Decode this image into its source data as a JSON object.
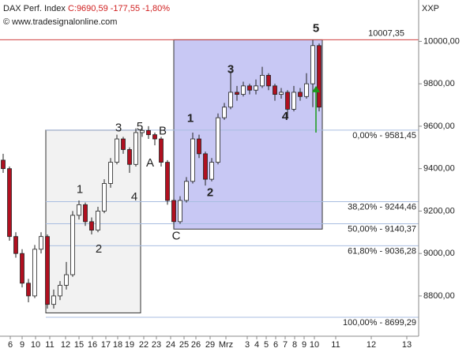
{
  "chart_data": {
    "type": "candlestick",
    "title": "DAX Perf. Index",
    "quote": "C:9690,59 -177,55 -1,80%",
    "subtitle": "© www.tradesignalonline.com",
    "axis_label": "XXP",
    "xlim": [
      0,
      530
    ],
    "ylim": [
      8610,
      10195
    ],
    "xticks": [
      {
        "value": 13,
        "label": "6"
      },
      {
        "value": 28,
        "label": "9"
      },
      {
        "value": 45,
        "label": "10"
      },
      {
        "value": 63,
        "label": "11"
      },
      {
        "value": 83,
        "label": "12"
      },
      {
        "value": 100,
        "label": "15"
      },
      {
        "value": 117,
        "label": "16"
      },
      {
        "value": 134,
        "label": "17"
      },
      {
        "value": 149,
        "label": "18"
      },
      {
        "value": 164,
        "label": "19"
      },
      {
        "value": 182,
        "label": "22"
      },
      {
        "value": 198,
        "label": "23"
      },
      {
        "value": 216,
        "label": "24"
      },
      {
        "value": 233,
        "label": "25"
      },
      {
        "value": 248,
        "label": "26"
      },
      {
        "value": 266,
        "label": "29"
      },
      {
        "value": 286,
        "label": "Mrz"
      },
      {
        "value": 313,
        "label": "3"
      },
      {
        "value": 325,
        "label": "4"
      },
      {
        "value": 337,
        "label": "5"
      },
      {
        "value": 349,
        "label": "6"
      },
      {
        "value": 361,
        "label": "7"
      },
      {
        "value": 373,
        "label": "8"
      },
      {
        "value": 385,
        "label": "9"
      },
      {
        "value": 398,
        "label": "10"
      },
      {
        "value": 425,
        "label": "11"
      },
      {
        "value": 470,
        "label": "12"
      },
      {
        "value": 515,
        "label": "13"
      }
    ],
    "yticks": [
      {
        "value": 8800,
        "label": "8800,00"
      },
      {
        "value": 9000,
        "label": "9000,00"
      },
      {
        "value": 9200,
        "label": "9200,00"
      },
      {
        "value": 9400,
        "label": "9400,00"
      },
      {
        "value": 9600,
        "label": "9600,00"
      },
      {
        "value": 9800,
        "label": "9800,00"
      },
      {
        "value": 10000,
        "label": "10000,00"
      }
    ],
    "up_color": "#ffffff",
    "down_color": "#b01020",
    "x": [
      4,
      12,
      20,
      28,
      36,
      44,
      52,
      60,
      68,
      76,
      84,
      92,
      100,
      108,
      116,
      124,
      132,
      140,
      148,
      156,
      164,
      172,
      180,
      188,
      196,
      204,
      212,
      220,
      228,
      236,
      244,
      252,
      260,
      268,
      276,
      284,
      292,
      300,
      308,
      316,
      324,
      332,
      340,
      348,
      356,
      364,
      372,
      380,
      388,
      396,
      404
    ],
    "open": [
      9440,
      9400,
      9080,
      9000,
      8860,
      8800,
      9020,
      9080,
      8760,
      8800,
      8850,
      8900,
      9180,
      9230,
      9150,
      9110,
      9200,
      9330,
      9430,
      9540,
      9490,
      9420,
      9570,
      9580,
      9560,
      9540,
      9430,
      9250,
      9150,
      9250,
      9340,
      9540,
      9470,
      9350,
      9430,
      9640,
      9690,
      9760,
      9750,
      9790,
      9770,
      9790,
      9840,
      9790,
      9750,
      9760,
      9680,
      9760,
      9740,
      9800,
      9980
    ],
    "high": [
      9470,
      9410,
      9100,
      9020,
      8880,
      9040,
      9100,
      9090,
      8830,
      8870,
      8960,
      9200,
      9250,
      9240,
      9170,
      9220,
      9350,
      9450,
      9560,
      9550,
      9500,
      9590,
      9600,
      9600,
      9570,
      9550,
      9440,
      9260,
      9270,
      9360,
      9570,
      9560,
      9480,
      9450,
      9660,
      9710,
      9860,
      9790,
      9810,
      9800,
      9820,
      9880,
      9850,
      9800,
      9780,
      9770,
      9790,
      9780,
      9850,
      10007,
      9990
    ],
    "low": [
      9380,
      9060,
      8980,
      8840,
      8770,
      8790,
      9000,
      8740,
      8740,
      8780,
      8830,
      8890,
      9160,
      9130,
      9090,
      9100,
      9190,
      9310,
      9420,
      9470,
      9380,
      9410,
      9550,
      9540,
      9510,
      9410,
      9230,
      9120,
      9140,
      9240,
      9330,
      9450,
      9320,
      9340,
      9420,
      9630,
      9680,
      9720,
      9740,
      9750,
      9750,
      9780,
      9770,
      9720,
      9730,
      9640,
      9670,
      9720,
      9730,
      9690,
      9670
    ],
    "close": [
      9400,
      9080,
      9000,
      8860,
      8800,
      9020,
      9080,
      8760,
      8800,
      8850,
      8900,
      9180,
      9230,
      9150,
      9110,
      9200,
      9330,
      9430,
      9540,
      9490,
      9420,
      9570,
      9580,
      9560,
      9540,
      9430,
      9250,
      9150,
      9250,
      9340,
      9540,
      9470,
      9350,
      9430,
      9640,
      9690,
      9760,
      9750,
      9790,
      9770,
      9790,
      9840,
      9790,
      9750,
      9760,
      9680,
      9760,
      9740,
      9800,
      9980,
      9690
    ],
    "boxes": [
      {
        "x": [
          58,
          178
        ],
        "y": [
          8720,
          9581.45
        ],
        "color": "#f2f2f2"
      },
      {
        "x": [
          220,
          408
        ],
        "y": [
          9115,
          10007.35
        ],
        "color": "#c8c8f4"
      }
    ],
    "resistance": {
      "value": 10007.35,
      "label": "10007,35",
      "color": "#d04040"
    },
    "fib_levels": [
      {
        "value": 9581.45,
        "label": "0,00% - 9581,45"
      },
      {
        "value": 9244.46,
        "label": "38,20% - 9244,46"
      },
      {
        "value": 9140.37,
        "label": "50,00% - 9140,37"
      },
      {
        "value": 9036.28,
        "label": "61,80% - 9036,28"
      },
      {
        "value": 8699.29,
        "label": "100,00% - 8699,29"
      }
    ],
    "fib_color": "#a8bde0",
    "annotations": [
      {
        "text": "3",
        "x": 150,
        "y": 9590,
        "color": "#a8bde0"
      },
      {
        "text": "5",
        "x": 177,
        "y": 9595,
        "color": "#a8bde0"
      },
      {
        "text": "B",
        "x": 206,
        "y": 9575,
        "color": "#a8bde0"
      },
      {
        "text": "A",
        "x": 190,
        "y": 9425,
        "color": "#a8bde0"
      },
      {
        "text": "1",
        "x": 101,
        "y": 9300,
        "color": "#a8bde0"
      },
      {
        "text": "4",
        "x": 170,
        "y": 9265,
        "color": "#a8bde0"
      },
      {
        "text": "2",
        "x": 125,
        "y": 9020,
        "color": "#a8bde0"
      },
      {
        "text": "C",
        "x": 223,
        "y": 9080,
        "color": "#a8bde0"
      },
      {
        "text": "1",
        "x": 241,
        "y": 9635,
        "color": "#2020b0"
      },
      {
        "text": "2",
        "x": 266,
        "y": 9285,
        "color": "#2020b0"
      },
      {
        "text": "3",
        "x": 292,
        "y": 9865,
        "color": "#2020b0"
      },
      {
        "text": "4",
        "x": 361,
        "y": 9645,
        "color": "#2020b0"
      },
      {
        "text": "5",
        "x": 400,
        "y": 10060,
        "color": "#2020b0"
      }
    ],
    "arrow": {
      "x": 400,
      "y": [
        9570,
        9790
      ],
      "color": "#1a9a1a"
    }
  }
}
